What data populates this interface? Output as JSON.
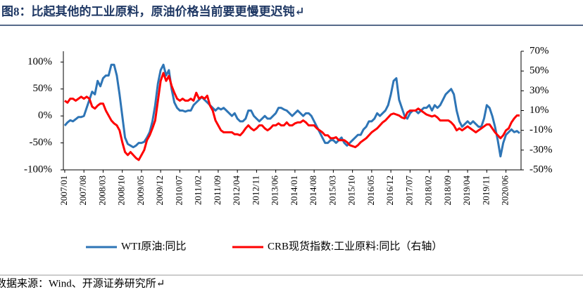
{
  "chart_data": {
    "type": "line",
    "title": "图8：比起其他的工业原料，原油价格当前要更慢更迟钝↵",
    "source": "数据来源：Wind、开源证券研究所↵",
    "categories": [
      "2007/01",
      null,
      null,
      null,
      null,
      null,
      null,
      "2007/08",
      null,
      null,
      null,
      null,
      null,
      null,
      "2008/03",
      null,
      null,
      null,
      null,
      null,
      null,
      "2008/10",
      null,
      null,
      null,
      null,
      null,
      null,
      "2009/05",
      null,
      null,
      null,
      null,
      null,
      null,
      "2009/12",
      null,
      null,
      null,
      null,
      null,
      null,
      "2010/07",
      null,
      null,
      null,
      null,
      null,
      null,
      "2011/02",
      null,
      null,
      null,
      null,
      null,
      null,
      "2011/09",
      null,
      null,
      null,
      null,
      null,
      null,
      "2012/04",
      null,
      null,
      null,
      null,
      null,
      null,
      "2012/11",
      null,
      null,
      null,
      null,
      null,
      null,
      "2013/06",
      null,
      null,
      null,
      null,
      null,
      null,
      "2014/01",
      null,
      null,
      null,
      null,
      null,
      null,
      "2014/08",
      null,
      null,
      null,
      null,
      null,
      null,
      "2015/03",
      null,
      null,
      null,
      null,
      null,
      null,
      "2015/10",
      null,
      null,
      null,
      null,
      null,
      null,
      "2016/05",
      null,
      null,
      null,
      null,
      null,
      null,
      "2016/12",
      null,
      null,
      null,
      null,
      null,
      null,
      "2017/07",
      null,
      null,
      null,
      null,
      null,
      null,
      "2018/02",
      null,
      null,
      null,
      null,
      null,
      null,
      "2018/09",
      null,
      null,
      null,
      null,
      null,
      null,
      "2019/04",
      null,
      null,
      null,
      null,
      null,
      null,
      "2019/11",
      null,
      null,
      null,
      null,
      null,
      null,
      "2020/06",
      null,
      null,
      null,
      null,
      null
    ],
    "series": [
      {
        "name": "WTI原油:同比",
        "color": "#2e75b6",
        "values": [
          -18,
          -12,
          -8,
          -10,
          -6,
          -2,
          -2,
          0,
          15,
          30,
          45,
          40,
          65,
          55,
          70,
          75,
          75,
          95,
          95,
          75,
          40,
          0,
          -40,
          -52,
          -55,
          -58,
          -55,
          -50,
          -50,
          -48,
          -40,
          -30,
          -10,
          20,
          60,
          85,
          95,
          75,
          85,
          50,
          25,
          15,
          10,
          10,
          8,
          10,
          10,
          20,
          25,
          30,
          35,
          30,
          25,
          20,
          15,
          10,
          15,
          12,
          15,
          10,
          5,
          0,
          5,
          -5,
          -10,
          -10,
          -5,
          10,
          10,
          0,
          -5,
          -10,
          -5,
          0,
          -5,
          -5,
          0,
          5,
          15,
          15,
          12,
          10,
          5,
          0,
          5,
          10,
          5,
          0,
          5,
          5,
          0,
          -10,
          -20,
          -30,
          -40,
          -50,
          -50,
          -45,
          -45,
          -50,
          -45,
          -40,
          -50,
          -55,
          -50,
          -45,
          -40,
          -35,
          -35,
          -25,
          -20,
          -10,
          -10,
          -5,
          5,
          0,
          5,
          10,
          20,
          40,
          65,
          70,
          30,
          15,
          0,
          -5,
          5,
          10,
          10,
          5,
          10,
          15,
          15,
          20,
          10,
          20,
          15,
          20,
          30,
          40,
          45,
          50,
          40,
          10,
          -10,
          -20,
          -15,
          -10,
          -15,
          -10,
          -15,
          -20,
          -20,
          -5,
          20,
          15,
          0,
          -20,
          -45,
          -75,
          -50,
          -35,
          -30,
          -25,
          -30,
          -28,
          -32
        ]
      },
      {
        "name": "CRB现货指数:工业原料:同比（右轴）",
        "color": "#ff0000",
        "axis": "y2",
        "values": [
          20,
          18,
          22,
          22,
          20,
          22,
          24,
          22,
          24,
          22,
          14,
          12,
          15,
          17,
          17,
          10,
          5,
          0,
          -3,
          -5,
          -10,
          -22,
          -32,
          -35,
          -32,
          -35,
          -38,
          -40,
          -35,
          -30,
          -20,
          -15,
          -8,
          0,
          20,
          40,
          48,
          40,
          45,
          35,
          28,
          22,
          20,
          22,
          20,
          20,
          22,
          20,
          28,
          22,
          24,
          22,
          25,
          15,
          10,
          0,
          -5,
          -10,
          -12,
          -12,
          -12,
          -12,
          -14,
          -14,
          -15,
          -12,
          -8,
          -5,
          -8,
          -10,
          -8,
          -5,
          -5,
          -8,
          -10,
          -8,
          -5,
          -5,
          -3,
          -5,
          -5,
          -2,
          -5,
          -5,
          -3,
          -2,
          -2,
          0,
          -2,
          -5,
          -5,
          -5,
          -8,
          -10,
          -12,
          -15,
          -15,
          -18,
          -18,
          -17,
          -20,
          -20,
          -20,
          -22,
          -25,
          -26,
          -27,
          -25,
          -22,
          -20,
          -18,
          -15,
          -12,
          -10,
          -8,
          -5,
          -2,
          0,
          3,
          6,
          7,
          6,
          5,
          3,
          2,
          8,
          10,
          10,
          10,
          12,
          10,
          8,
          6,
          5,
          4,
          5,
          3,
          0,
          0,
          0,
          0,
          -2,
          -5,
          -10,
          -8,
          -10,
          -8,
          -6,
          -8,
          -10,
          -12,
          -10,
          -8,
          -6,
          -4,
          -4,
          -8,
          -12,
          -15,
          -18,
          -15,
          -10,
          -8,
          -2,
          2,
          5,
          5
        ]
      }
    ],
    "ylim": [
      -100,
      120
    ],
    "yticks": [
      {
        "value": -100,
        "label": "-100%"
      },
      {
        "value": -50,
        "label": "-50%"
      },
      {
        "value": 0,
        "label": "0%"
      },
      {
        "value": 50,
        "label": "50%"
      },
      {
        "value": 100,
        "label": "100%"
      }
    ],
    "y2lim": [
      -50,
      70
    ],
    "y2ticks": [
      {
        "value": -50,
        "label": "-50%"
      },
      {
        "value": -30,
        "label": "-30%"
      },
      {
        "value": -10,
        "label": "-10%"
      },
      {
        "value": 10,
        "label": "10%"
      },
      {
        "value": 30,
        "label": "30%"
      },
      {
        "value": 50,
        "label": "50%"
      },
      {
        "value": 70,
        "label": "70%"
      }
    ],
    "grid": false,
    "legend": "bottom"
  }
}
